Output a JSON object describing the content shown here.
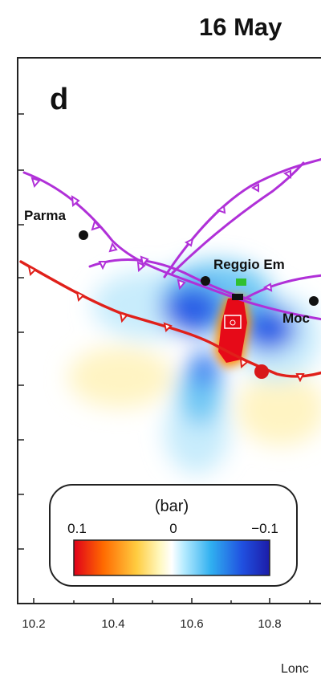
{
  "figure": {
    "title": "16 May",
    "panel_letter": "d",
    "x_axis": {
      "label": "Lonc",
      "ticks": [
        "10.2",
        "10.4",
        "10.6",
        "10.8"
      ]
    },
    "cities": [
      {
        "name": "Parma",
        "label": "Parma"
      },
      {
        "name": "reggio-emilia",
        "label": "Reggio Em"
      },
      {
        "name": "modena",
        "label": "Moc"
      }
    ],
    "colorbar": {
      "unit": "(bar)",
      "min_label": "0.1",
      "mid_label": "0",
      "max_label": "−0.1",
      "colors": [
        "#e0001a",
        "#ff6a00",
        "#ffcc40",
        "#fff8c0",
        "#ffffff",
        "#b8ecff",
        "#30b0f0",
        "#2050e0",
        "#1c1ca8"
      ]
    },
    "colors": {
      "thrust_purple": "#b030d8",
      "thrust_red": "#e0201a",
      "city_dot": "#111111",
      "epicenter": "#d8181a",
      "aftershock_green": "#30c030"
    },
    "icons": [
      "city-dot",
      "epicenter-marker",
      "aftershock-marker",
      "thrust-teeth"
    ]
  }
}
